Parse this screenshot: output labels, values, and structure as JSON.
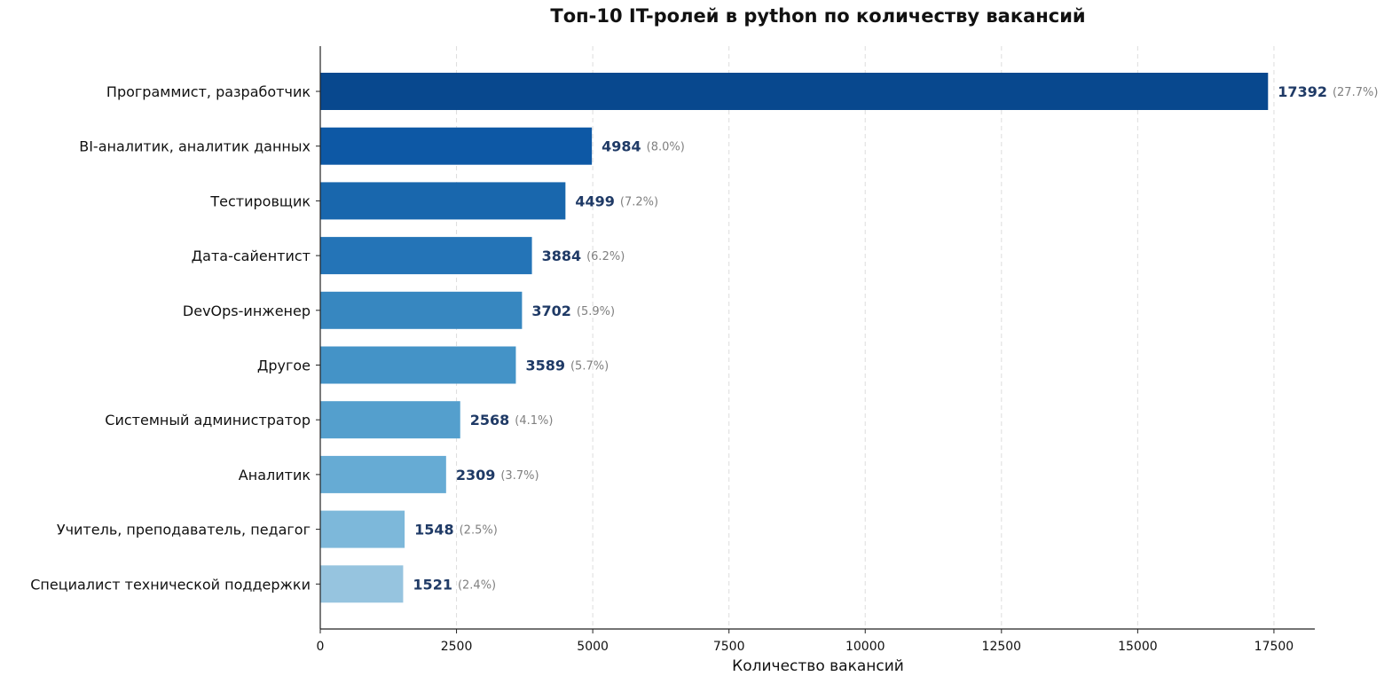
{
  "chart_data": {
    "type": "bar",
    "orientation": "horizontal",
    "title": "Топ-10 IT-ролей в python по количеству вакансий",
    "xlabel": "Количество вакансий",
    "ylabel": "",
    "xlim": [
      0,
      18250
    ],
    "xticks": [
      0,
      2500,
      5000,
      7500,
      10000,
      12500,
      15000,
      17500
    ],
    "grid": "x, dashed",
    "categories": [
      "Программист, разработчик",
      "BI-аналитик, аналитик данных",
      "Тестировщик",
      "Дата-сайентист",
      "DevOps-инженер",
      "Другое",
      "Системный администратор",
      "Аналитик",
      "Учитель, преподаватель, педагог",
      "Специалист технической поддержки"
    ],
    "values": [
      17392,
      4984,
      4499,
      3884,
      3702,
      3589,
      2568,
      2309,
      1548,
      1521
    ],
    "percent_labels": [
      "(27.7%)",
      "(8.0%)",
      "(7.2%)",
      "(6.2%)",
      "(5.9%)",
      "(5.7%)",
      "(4.1%)",
      "(3.7%)",
      "(2.5%)",
      "(2.4%)"
    ],
    "colors": [
      "#08488e",
      "#0d58a5",
      "#1967ad",
      "#2474b7",
      "#3787c0",
      "#4493c7",
      "#549fcd",
      "#66abd4",
      "#7db8da",
      "#96c4df"
    ]
  }
}
